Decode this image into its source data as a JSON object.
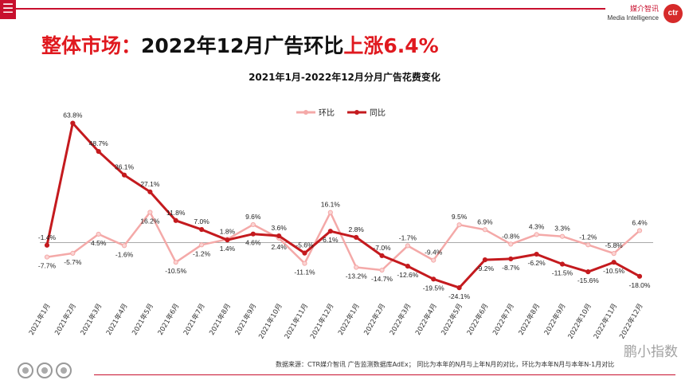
{
  "header": {
    "menu_icon": "hamburger-icon",
    "brand_cn": "媒介智讯",
    "brand_en": "Media Intelligence",
    "logo": "ctr"
  },
  "headline": {
    "part1": "整体市场：",
    "part2": "2022年12月广告环比",
    "part3": "上涨6.4%"
  },
  "footer": {
    "note": "数据来源：CTR媒介智讯 广告监测数据库AdEx； 同比为本年的N月与上年N月的对比，环比为本年N月与本年N-1月对比",
    "watermark": "鹏小指数"
  },
  "colors": {
    "accent": "#e0191f",
    "mom": "#f4a9a8",
    "yoy": "#c41a1e"
  },
  "chart_data": {
    "type": "line",
    "title": "2021年1月-2022年12月分月广告花费变化",
    "categories": [
      "2021年1月",
      "2021年2月",
      "2021年3月",
      "2021年4月",
      "2021年5月",
      "2021年6月",
      "2021年7月",
      "2021年8月",
      "2021年9月",
      "2021年10月",
      "2021年11月",
      "2021年12月",
      "2022年1月",
      "2022年2月",
      "2022年3月",
      "2022年4月",
      "2022年5月",
      "2022年6月",
      "2022年7月",
      "2022年8月",
      "2022年9月",
      "2022年10月",
      "2022年11月",
      "2022年12月"
    ],
    "series": [
      {
        "name": "环比",
        "color": "#f4a9a8",
        "values": [
          -7.7,
          -5.7,
          4.5,
          -1.6,
          16.2,
          -10.5,
          -1.2,
          1.8,
          9.6,
          2.4,
          -11.1,
          16.1,
          -13.2,
          -14.7,
          -1.7,
          -9.4,
          9.5,
          6.9,
          -0.8,
          4.3,
          3.3,
          -1.2,
          -5.8,
          6.4
        ],
        "labels": [
          "-7.7%",
          "-5.7%",
          "4.5%",
          "-1.6%",
          "16.2%",
          "-10.5%",
          "-1.2%",
          "1.8%",
          "9.6%",
          "2.4%",
          "-11.1%",
          "16.1%",
          "-13.2%",
          "-14.7%",
          "-1.7%",
          "-9.4%",
          "9.5%",
          "6.9%",
          "-0.8%",
          "4.3%",
          "3.3%",
          "-1.2%",
          "-5.8%",
          "6.4%"
        ]
      },
      {
        "name": "同比",
        "color": "#c41a1e",
        "values": [
          -1.4,
          63.8,
          48.7,
          36.1,
          27.1,
          11.8,
          7.0,
          1.4,
          4.6,
          3.6,
          -5.6,
          6.1,
          2.8,
          -7.0,
          -12.6,
          -19.5,
          -24.1,
          -9.2,
          -8.7,
          -6.2,
          -11.5,
          -15.6,
          -10.5,
          -18.0
        ],
        "labels": [
          "-1.4%",
          "63.8%",
          "48.7%",
          "36.1%",
          "27.1%",
          "11.8%",
          "7.0%",
          "1.4%",
          "4.6%",
          "3.6%",
          "-5.6%",
          "6.1%",
          "2.8%",
          "-7.0%",
          "-12.6%",
          "-19.5%",
          "-24.1%",
          "-9.2%",
          "-8.7%",
          "-6.2%",
          "-11.5%",
          "-15.6%",
          "-10.5%",
          "-18.0%"
        ]
      }
    ],
    "ylim": [
      -30,
      70
    ],
    "legend": "top-center",
    "grid": false
  }
}
